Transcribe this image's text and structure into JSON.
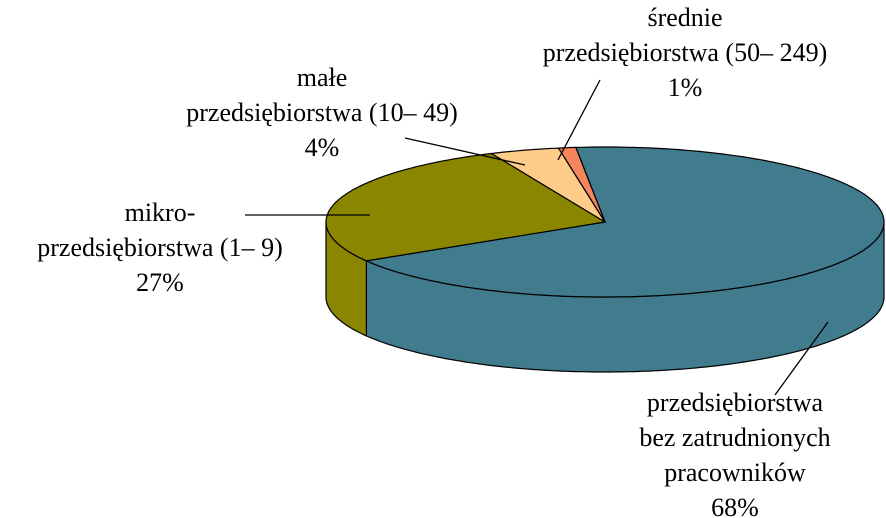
{
  "chart_data": {
    "type": "pie3d",
    "categories": [
      [
        "przedsiębiorstwa",
        "bez zatrudnionych",
        "pracowników"
      ],
      [
        "mikro-",
        "przedsiębiorstwa (1– 9)"
      ],
      [
        "małe",
        "przedsiębiorstwa (10– 49)"
      ],
      [
        "średnie",
        "przedsiębiorstwa (50– 249)"
      ]
    ],
    "values": [
      68,
      27,
      4,
      1
    ],
    "value_labels": [
      "68%",
      "27%",
      "4%",
      "1%"
    ],
    "colors": [
      "#417b8e",
      "#8a8600",
      "#fdcc88",
      "#f4855e"
    ]
  }
}
